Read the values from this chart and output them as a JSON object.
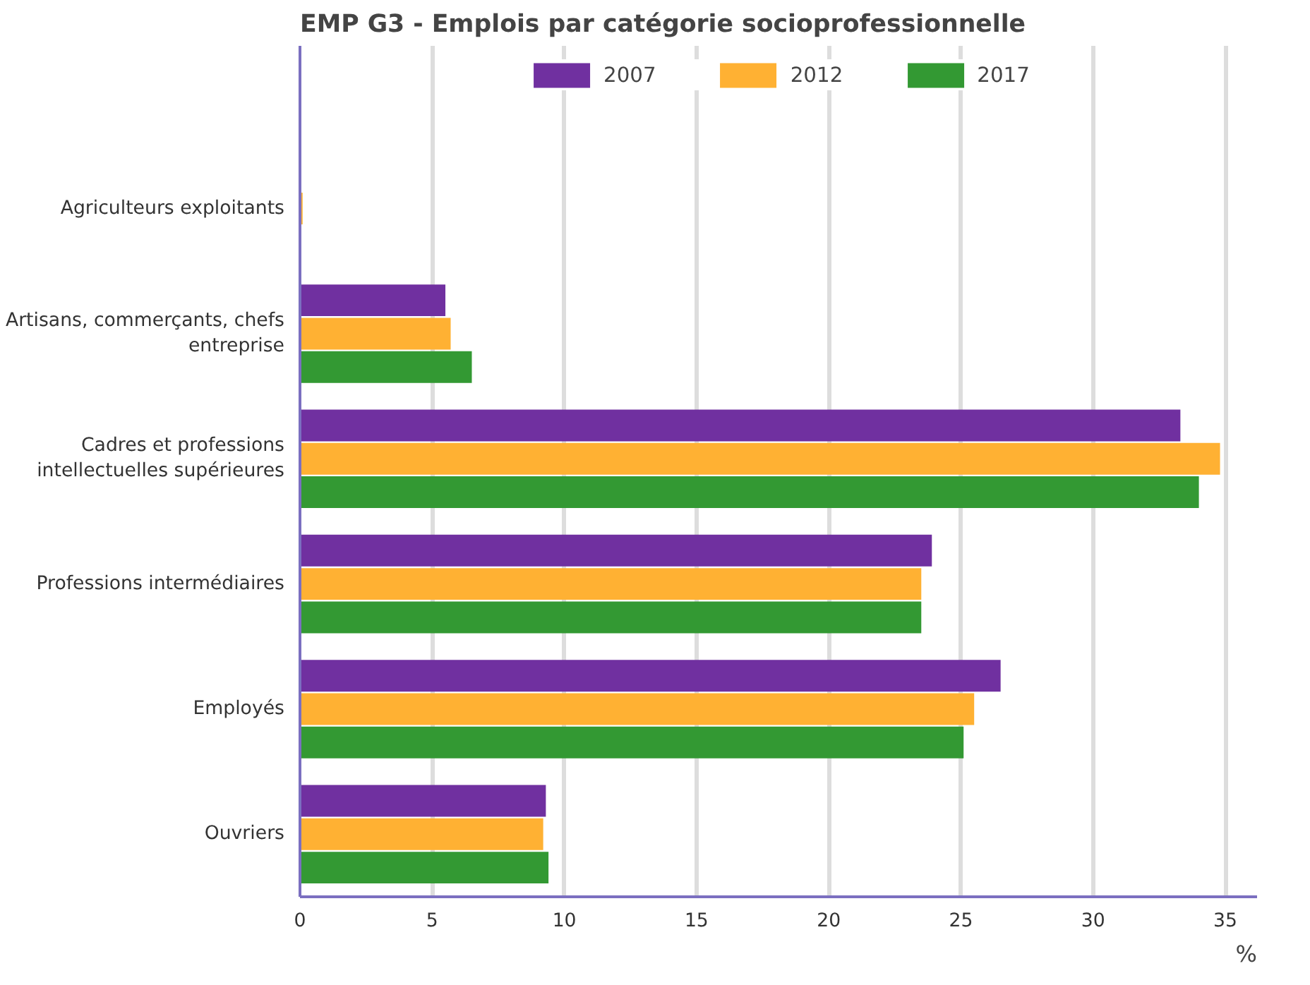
{
  "chart_data": {
    "type": "bar",
    "orientation": "horizontal",
    "title": "EMP G3 - Emplois par catégorie socioprofessionnelle",
    "xlabel": "%",
    "categories": [
      "Agriculteurs exploitants",
      "Artisans, commerçants, chefs entreprise",
      "Cadres et professions intellectuelles supérieures",
      "Professions intermédiaires",
      "Employés",
      "Ouvriers"
    ],
    "series": [
      {
        "name": "2007",
        "color": "#7030a0",
        "values": [
          0,
          5.5,
          33.3,
          23.9,
          26.5,
          9.3
        ]
      },
      {
        "name": "2012",
        "color": "#ffb133",
        "values": [
          0.1,
          5.7,
          34.8,
          23.5,
          25.5,
          9.2
        ]
      },
      {
        "name": "2017",
        "color": "#339933",
        "values": [
          0,
          6.5,
          34.0,
          23.5,
          25.1,
          9.4
        ]
      }
    ],
    "xlim": [
      0,
      36.2
    ],
    "xticks": [
      0,
      5,
      10,
      15,
      20,
      25,
      30,
      35
    ],
    "grid": "x",
    "legend": "top"
  }
}
